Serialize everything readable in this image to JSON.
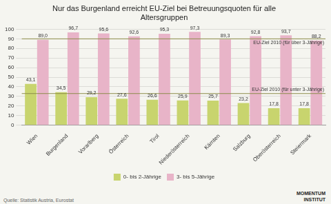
{
  "chart_data": {
    "type": "bar",
    "title": "Nur das Burgenland erreicht EU-Ziel bei Betreuungsquoten für alle\nAltersgruppen",
    "categories": [
      "Wien",
      "Burgenland",
      "Vorarlberg",
      "Österreich",
      "Tirol",
      "Niederösterreich",
      "Kärnten",
      "Salzburg",
      "Oberösterreich",
      "Steiermark"
    ],
    "series": [
      {
        "name": "0- bis 2-Jährige",
        "color": "#c8d46e",
        "values": [
          43.1,
          34.5,
          29.2,
          27.6,
          26.6,
          25.9,
          25.7,
          23.2,
          17.8,
          17.8
        ],
        "value_labels": [
          "43,1",
          "34,5",
          "29,2",
          "27,6",
          "26,6",
          "25,9",
          "25,7",
          "23,2",
          "17,8",
          "17,8"
        ]
      },
      {
        "name": "3- bis 5-Jährige",
        "color": "#e8b4c8",
        "values": [
          89.0,
          96.7,
          95.6,
          92.6,
          95.3,
          97.3,
          89.3,
          92.8,
          93.7,
          88.2
        ],
        "value_labels": [
          "89,0",
          "96,7",
          "95,6",
          "92,6",
          "95,3",
          "97,3",
          "89,3",
          "92,8",
          "93,7",
          "88,2"
        ]
      }
    ],
    "annotations": [
      {
        "text": "EU-Ziel 2010 (für unter 3-Jährige)",
        "y": 33.0,
        "color": "#8c8c4a"
      },
      {
        "text": "EU-Ziel 2010 (für über 3-Jährige)",
        "y": 90.0,
        "color": "#8c8c4a"
      }
    ],
    "source": "Quelle: Statistik Austria, Eurostat",
    "logo": "MOMENTUM\nINSTITUT",
    "background_color": "#f5f5f0",
    "ylim": [
      0,
      100
    ],
    "yticks": [
      0,
      10,
      20,
      30,
      40,
      50,
      60,
      70,
      80,
      90,
      100
    ],
    "grid": true,
    "legend": "bottom",
    "data_labels": true
  }
}
